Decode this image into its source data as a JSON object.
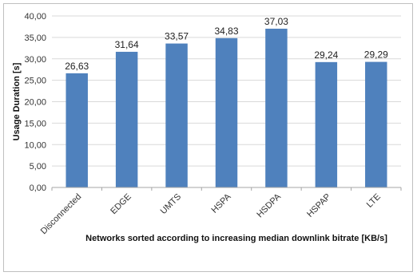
{
  "chart_data": {
    "type": "bar",
    "categories": [
      "Disconnected",
      "EDGE",
      "UMTS",
      "HSPA",
      "HSDPA",
      "HSPAP",
      "LTE"
    ],
    "values": [
      26.63,
      31.64,
      33.57,
      34.83,
      37.03,
      29.24,
      29.29
    ],
    "value_labels": [
      "26,63",
      "31,64",
      "33,57",
      "34,83",
      "37,03",
      "29,24",
      "29,29"
    ],
    "y_ticks": [
      0,
      5,
      10,
      15,
      20,
      25,
      30,
      35,
      40
    ],
    "y_tick_labels": [
      "0,00",
      "5,00",
      "10,00",
      "15,00",
      "20,00",
      "25,00",
      "30,00",
      "35,00",
      "40,00"
    ],
    "ylim": [
      0,
      40
    ],
    "xlabel": "Networks sorted according to increasing median downlink bitrate [KB/s]",
    "ylabel": "Usage Duration [s]",
    "grid": true,
    "legend": "none",
    "bar_color": "#4f81bd",
    "grid_color": "#d9d9d9",
    "axis_color": "#a6a6a6"
  }
}
